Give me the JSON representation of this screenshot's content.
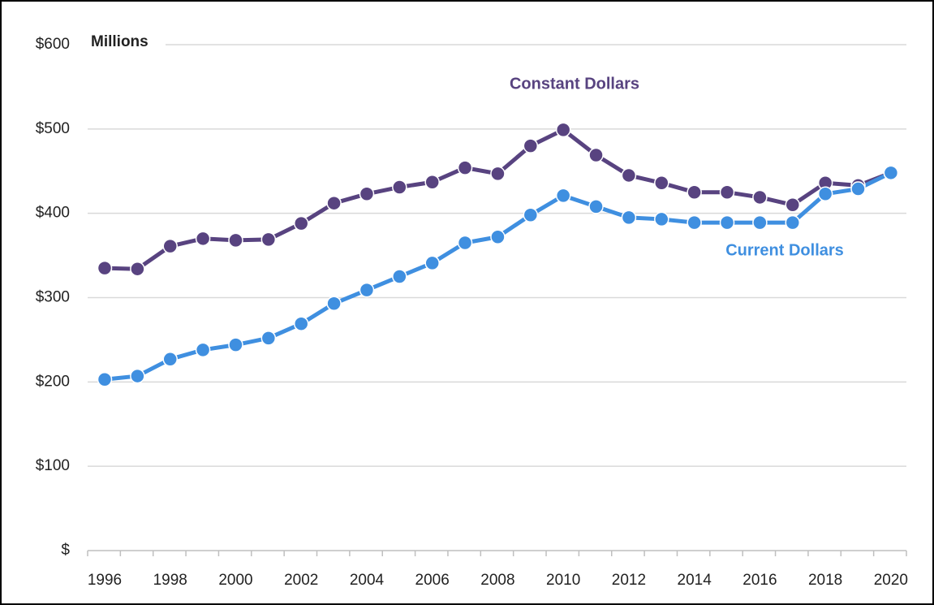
{
  "chart_data": {
    "type": "line",
    "annotation": "Millions",
    "categories": [
      "1996",
      null,
      "1998",
      null,
      "2000",
      null,
      "2002",
      null,
      "2004",
      null,
      "2006",
      null,
      "2008",
      null,
      "2010",
      null,
      "2012",
      null,
      "2014",
      null,
      "2016",
      null,
      "2018",
      null,
      "2020"
    ],
    "series": [
      {
        "name": "Constant Dollars",
        "color": "#584380",
        "values": [
          335,
          334,
          361,
          370,
          368,
          369,
          388,
          412,
          423,
          431,
          437,
          454,
          447,
          480,
          499,
          469,
          445,
          436,
          425,
          425,
          419,
          410,
          436,
          433,
          448
        ]
      },
      {
        "name": "Current Dollars",
        "color": "#3f8fe0",
        "values": [
          203,
          207,
          227,
          238,
          244,
          252,
          269,
          293,
          309,
          325,
          341,
          365,
          372,
          398,
          421,
          408,
          395,
          393,
          389,
          389,
          389,
          389,
          423,
          429,
          448
        ]
      }
    ],
    "ylim": [
      0,
      600
    ],
    "yticks": [
      {
        "value": 0,
        "label": "$"
      },
      {
        "value": 100,
        "label": "$100"
      },
      {
        "value": 200,
        "label": "$200"
      },
      {
        "value": 300,
        "label": "$300"
      },
      {
        "value": 400,
        "label": "$400"
      },
      {
        "value": 500,
        "label": "$500"
      },
      {
        "value": 600,
        "label": "$600"
      }
    ],
    "grid": true
  }
}
